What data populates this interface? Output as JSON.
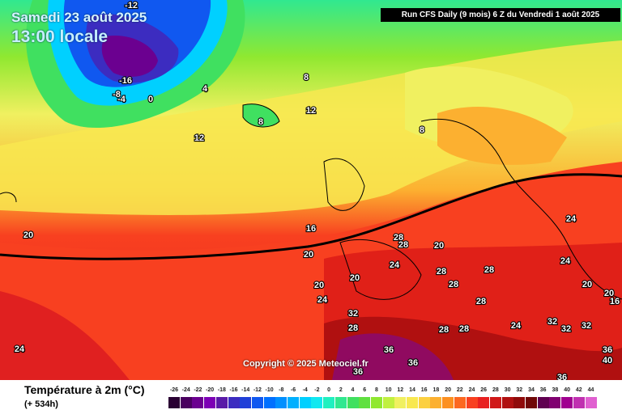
{
  "header": {
    "date": "Samedi 23 août 2025",
    "time": "13:00 locale",
    "run_info": "Run CFS Daily (9 mois) 6 Z du Vendredi 1 août 2025"
  },
  "footer": {
    "copyright": "Copyright © 2025 Meteociel.fr",
    "legend_title": "Température à 2m (°C)",
    "legend_sub": "(+ 534h)"
  },
  "scale": {
    "ticks": [
      "-26",
      "-24",
      "-22",
      "-20",
      "-18",
      "-16",
      "-14",
      "-12",
      "-10",
      "-8",
      "-6",
      "-4",
      "-2",
      "0",
      "2",
      "4",
      "6",
      "8",
      "10",
      "12",
      "14",
      "16",
      "18",
      "20",
      "22",
      "24",
      "26",
      "28",
      "30",
      "32",
      "34",
      "36",
      "38",
      "40",
      "42",
      "44"
    ],
    "colors": [
      "#2a0033",
      "#4a0060",
      "#6b0090",
      "#7d00b5",
      "#5a1aa8",
      "#3c2cc0",
      "#2040d8",
      "#1058f0",
      "#0070ff",
      "#0090ff",
      "#00b0ff",
      "#00d0ff",
      "#10e8f0",
      "#20f0c0",
      "#30e890",
      "#40e060",
      "#60e040",
      "#90e830",
      "#c0f040",
      "#f0f060",
      "#f8e850",
      "#fcd040",
      "#fcb030",
      "#fc9020",
      "#fc6820",
      "#f84020",
      "#e82020",
      "#d01818",
      "#b01010",
      "#900a0a",
      "#700808",
      "#600050",
      "#800070",
      "#a00090",
      "#c030b0",
      "#e060d0"
    ]
  },
  "map_labels": [
    {
      "text": "-12"
    },
    {
      "text": "-16"
    },
    {
      "text": "-8"
    },
    {
      "text": "-4"
    },
    {
      "text": "0"
    },
    {
      "text": "4"
    },
    {
      "text": "8"
    },
    {
      "text": "8"
    },
    {
      "text": "12"
    },
    {
      "text": "12"
    },
    {
      "text": "8"
    },
    {
      "text": "16"
    },
    {
      "text": "20"
    },
    {
      "text": "20"
    },
    {
      "text": "20"
    },
    {
      "text": "20"
    },
    {
      "text": "20"
    },
    {
      "text": "24"
    },
    {
      "text": "24"
    },
    {
      "text": "24"
    },
    {
      "text": "24"
    },
    {
      "text": "24"
    },
    {
      "text": "28"
    },
    {
      "text": "28"
    },
    {
      "text": "28"
    },
    {
      "text": "28"
    },
    {
      "text": "28"
    },
    {
      "text": "28"
    },
    {
      "text": "28"
    },
    {
      "text": "28"
    },
    {
      "text": "28"
    },
    {
      "text": "32"
    },
    {
      "text": "32"
    },
    {
      "text": "32"
    },
    {
      "text": "32"
    },
    {
      "text": "36"
    },
    {
      "text": "36"
    },
    {
      "text": "36"
    },
    {
      "text": "36"
    },
    {
      "text": "36"
    },
    {
      "text": "20"
    },
    {
      "text": "16"
    },
    {
      "text": "40"
    },
    {
      "text": "24"
    },
    {
      "text": "20"
    }
  ]
}
